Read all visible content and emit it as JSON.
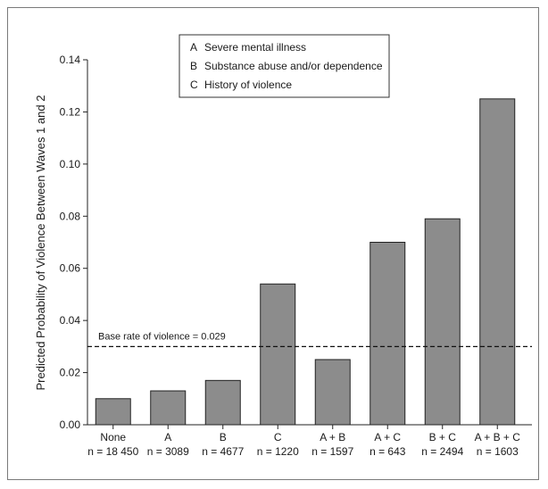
{
  "chart_data": {
    "type": "bar",
    "title": "",
    "xlabel": "",
    "ylabel": "Predicted Probability of Violence Between Waves 1 and 2",
    "ylim": [
      0,
      0.14
    ],
    "yticks": [
      "0.00",
      "0.02",
      "0.04",
      "0.06",
      "0.08",
      "0.10",
      "0.12",
      "0.14"
    ],
    "categories": [
      "None",
      "A",
      "B",
      "C",
      "A + B",
      "A + C",
      "B + C",
      "A + B + C"
    ],
    "sample_sizes": [
      "n = 18 450",
      "n = 3089",
      "n = 4677",
      "n = 1220",
      "n = 1597",
      "n = 643",
      "n = 2494",
      "n = 1603"
    ],
    "values": [
      0.01,
      0.013,
      0.017,
      0.054,
      0.025,
      0.07,
      0.079,
      0.125
    ],
    "bar_color": "#8c8c8c",
    "reference_line": {
      "value": 0.03,
      "label": "Base rate of violence = 0.029",
      "style": "dashed"
    },
    "legend": {
      "placement": "top-center",
      "entries": [
        {
          "key": "A",
          "label": "Severe mental illness"
        },
        {
          "key": "B",
          "label": "Substance abuse and/or dependence"
        },
        {
          "key": "C",
          "label": "History of violence"
        }
      ]
    },
    "grid": false
  }
}
